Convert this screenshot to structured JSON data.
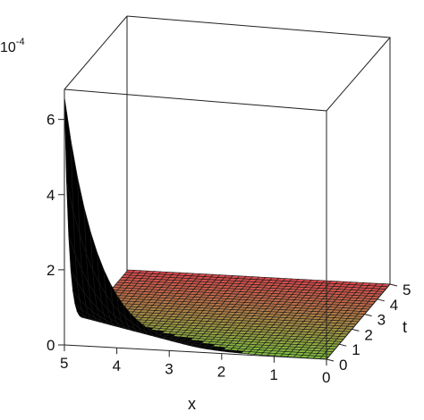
{
  "chart_data": {
    "type": "surface3d",
    "exponent_label": "10",
    "exponent_power": "-4",
    "xlabel": "x",
    "ylabel": "t",
    "zlabel": "",
    "x_ticks": [
      "0",
      "1",
      "2",
      "3",
      "4",
      "5"
    ],
    "t_ticks": [
      "0",
      "1",
      "2",
      "3",
      "4",
      "5"
    ],
    "z_ticks": [
      "0",
      "2",
      "4",
      "6"
    ],
    "x_range": [
      0,
      5
    ],
    "t_range": [
      0,
      5
    ],
    "z_range": [
      0,
      6.8
    ],
    "z_scale": "1e-4",
    "peak": {
      "x": 5,
      "t": 0,
      "z": 6.6
    },
    "surface_description_series": [
      {
        "name": "",
        "x": [
          0,
          1,
          2,
          3,
          4,
          5
        ],
        "z_at_t0": [
          0,
          0,
          0,
          0.02,
          0.3,
          6.6
        ]
      }
    ],
    "colors": {
      "high": "#e8f08a",
      "mid": "#e9a45a",
      "low": "#7fbf3e",
      "far": "#d7474c",
      "grid": "#1a1a1a"
    }
  }
}
